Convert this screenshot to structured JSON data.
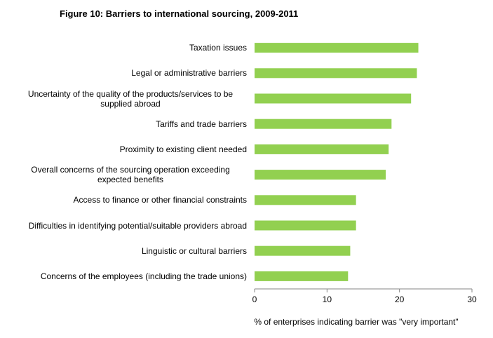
{
  "chart_data": {
    "type": "bar",
    "orientation": "horizontal",
    "title": "Figure 10:  Barriers to international sourcing, 2009-2011",
    "x_label": "% of enterprises  indicating barrier was \"very important\"",
    "categories": [
      "Taxation issues",
      "Legal or administrative barriers",
      "Uncertainty of the quality of the products/services to be supplied abroad",
      "Tariffs and trade barriers",
      "Proximity to existing client needed",
      "Overall concerns of the sourcing operation exceeding expected benefits",
      "Access to finance or other financial constraints",
      "Difficulties in identifying potential/suitable providers abroad",
      "Linguistic or cultural barriers",
      "Concerns of the employees (including the trade unions)"
    ],
    "values": [
      22.6,
      22.4,
      21.6,
      18.9,
      18.5,
      18.1,
      14.0,
      14.0,
      13.2,
      12.9
    ],
    "color": "#92d050",
    "xlim": [
      0,
      30
    ],
    "xticks": [
      0,
      10,
      20,
      30
    ]
  }
}
